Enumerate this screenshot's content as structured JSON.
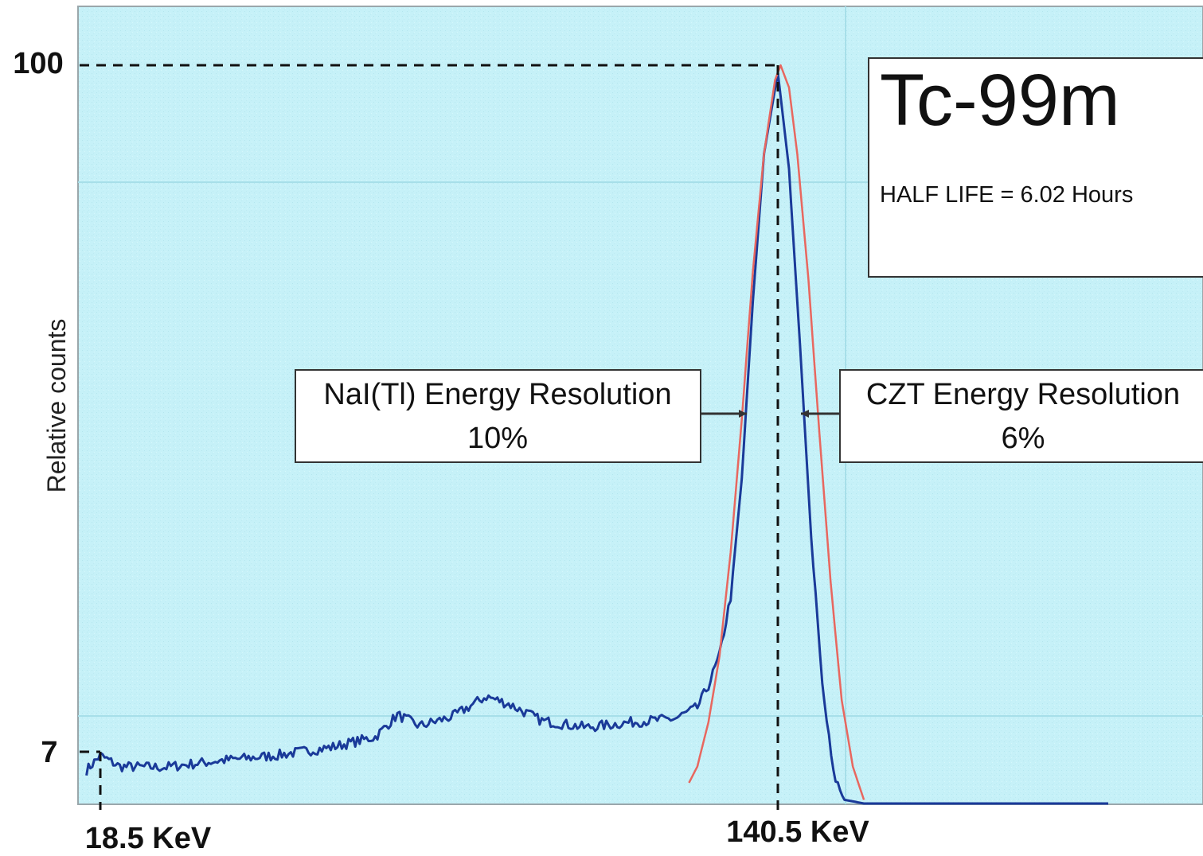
{
  "chart_data": {
    "type": "line",
    "title": "Tc-99m",
    "subtitle": "HALF LIFE = 6.02 Hours",
    "xlabel": "",
    "ylabel": "Relative counts",
    "grid": true,
    "x_tick_labels": [
      "18.5 KeV",
      "140.5 KeV"
    ],
    "y_tick_labels": [
      "100",
      "7"
    ],
    "ylim": [
      0,
      100
    ],
    "reference_lines": [
      {
        "label": "100",
        "y": 100,
        "x": 140.5
      },
      {
        "label": "7",
        "y": 7,
        "x": 18.5
      }
    ],
    "series": [
      {
        "color": "#1a3a99",
        "points": [
          [
            16,
            4.5
          ],
          [
            18.5,
            6.5
          ],
          [
            22,
            5.0
          ],
          [
            30,
            4.9
          ],
          [
            40,
            5.8
          ],
          [
            50,
            6.5
          ],
          [
            60,
            7.6
          ],
          [
            68,
            9.0
          ],
          [
            72,
            12.0
          ],
          [
            76,
            10.5
          ],
          [
            82,
            11.8
          ],
          [
            88,
            14.5
          ],
          [
            92,
            13.5
          ],
          [
            98,
            11.2
          ],
          [
            106,
            10.3
          ],
          [
            114,
            11.0
          ],
          [
            122,
            11.5
          ],
          [
            126,
            13.0
          ],
          [
            128,
            16.0
          ],
          [
            130,
            20.0
          ],
          [
            132,
            28.0
          ],
          [
            134,
            44.0
          ],
          [
            136,
            68.0
          ],
          [
            138,
            88.0
          ],
          [
            140.5,
            99.0
          ],
          [
            142.5,
            86.0
          ],
          [
            144.5,
            62.0
          ],
          [
            146.5,
            36.0
          ],
          [
            148.5,
            16.0
          ],
          [
            150.5,
            4.0
          ],
          [
            152.5,
            0.5
          ],
          [
            156,
            0
          ],
          [
            200,
            0
          ]
        ]
      },
      {
        "color": "#e8675f",
        "points": [
          [
            124.5,
            2.8
          ],
          [
            126,
            5.0
          ],
          [
            128,
            11.0
          ],
          [
            130,
            20.0
          ],
          [
            132,
            34.0
          ],
          [
            134,
            52.0
          ],
          [
            136,
            72.0
          ],
          [
            138,
            88.0
          ],
          [
            140,
            98.0
          ],
          [
            141,
            100.0
          ],
          [
            142.5,
            97.0
          ],
          [
            144,
            88.0
          ],
          [
            146,
            71.0
          ],
          [
            148,
            50.0
          ],
          [
            150,
            30.0
          ],
          [
            152,
            14.0
          ],
          [
            154,
            5.0
          ],
          [
            156,
            0.5
          ]
        ]
      }
    ],
    "annotations": [
      {
        "text": "NaI(Tl) Energy Resolution",
        "value": "10%"
      },
      {
        "text": "CZT Energy Resolution",
        "value": "6%"
      }
    ]
  }
}
